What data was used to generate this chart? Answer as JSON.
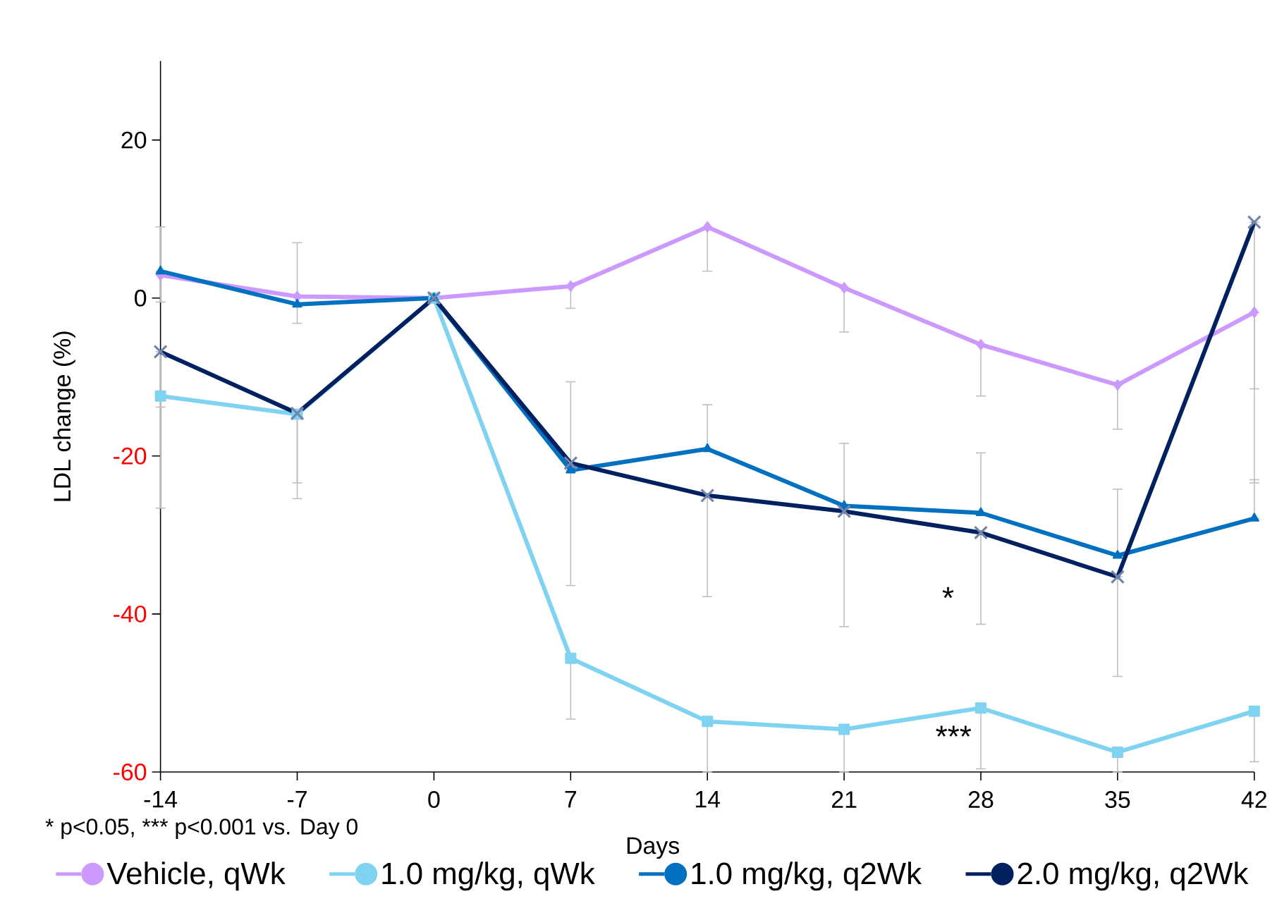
{
  "chart_data": {
    "type": "line",
    "xlabel": "Days",
    "ylabel": "LDL change (%)",
    "x": [
      -14,
      -7,
      0,
      7,
      14,
      21,
      28,
      35,
      42
    ],
    "xlim": [
      -14,
      42
    ],
    "xticks": [
      -14,
      -7,
      0,
      7,
      14,
      21,
      28,
      35,
      42
    ],
    "ylim": [
      -60,
      30
    ],
    "yticks": [
      -60,
      -40,
      -20,
      0,
      20
    ],
    "legend": "bottom",
    "line_style": "solid",
    "series": [
      {
        "name": "Vehicle, qWk",
        "color": "#cc99ff",
        "marker": "diamond",
        "values": [
          2.9,
          0.2,
          0,
          1.5,
          9.0,
          1.3,
          -5.9,
          -11.0,
          -1.8
        ],
        "errors": [
          [
            2.9,
            9.0
          ],
          [
            0.2,
            7.0
          ],
          null,
          [
            -1.3,
            1.5
          ],
          [
            3.4,
            9.0
          ],
          [
            -4.3,
            1.3
          ],
          [
            -12.4,
            -5.9
          ],
          [
            -16.6,
            -11.0
          ],
          [
            -23.4,
            -1.8
          ]
        ]
      },
      {
        "name": "1.0 mg/kg, qWk",
        "color": "#7fd3f0",
        "marker": "square",
        "values": [
          -12.4,
          -14.7,
          0,
          -45.6,
          -53.6,
          -54.6,
          -51.9,
          -57.5,
          -52.3
        ],
        "errors": [
          [
            -13.8,
            -12.4
          ],
          [
            -23.4,
            -14.7
          ],
          null,
          [
            -53.3,
            -45.6
          ],
          [
            -60,
            -53.6
          ],
          [
            -60,
            -54.6
          ],
          [
            -59.6,
            -51.9
          ],
          [
            -60,
            -57.5
          ],
          [
            -58.7,
            -52.3
          ]
        ]
      },
      {
        "name": "1.0 mg/kg, q2Wk",
        "color": "#0070c0",
        "marker": "triangle",
        "values": [
          3.4,
          -0.8,
          0,
          -21.8,
          -19.1,
          -26.3,
          -27.2,
          -32.6,
          -27.9
        ],
        "errors": [
          [
            -0.5,
            3.4
          ],
          [
            -3.2,
            -0.8
          ],
          null,
          [
            -36.4,
            -21.8
          ],
          [
            -19.1,
            -13.5
          ],
          [
            -26.3,
            -18.4
          ],
          [
            -27.2,
            -19.6
          ],
          [
            -32.6,
            -24.2
          ],
          [
            -27.9,
            -23.0
          ]
        ]
      },
      {
        "name": "2.0 mg/kg, q2Wk",
        "color": "#002060",
        "marker": "cross",
        "values": [
          -6.8,
          -14.6,
          0,
          -20.9,
          -25.0,
          -27.0,
          -29.7,
          -35.3,
          9.6
        ],
        "errors": [
          [
            -26.6,
            -6.8
          ],
          [
            -25.4,
            -14.6
          ],
          null,
          [
            -20.9,
            -10.6
          ],
          [
            -37.8,
            -25.0
          ],
          [
            -41.6,
            -27.0
          ],
          [
            -41.3,
            -29.7
          ],
          [
            -47.9,
            -35.3
          ],
          [
            -11.5,
            9.6
          ]
        ]
      }
    ],
    "annotations": [
      "*",
      "***",
      "* p<0.05,   *** p<0.001 vs. Day 0"
    ]
  }
}
